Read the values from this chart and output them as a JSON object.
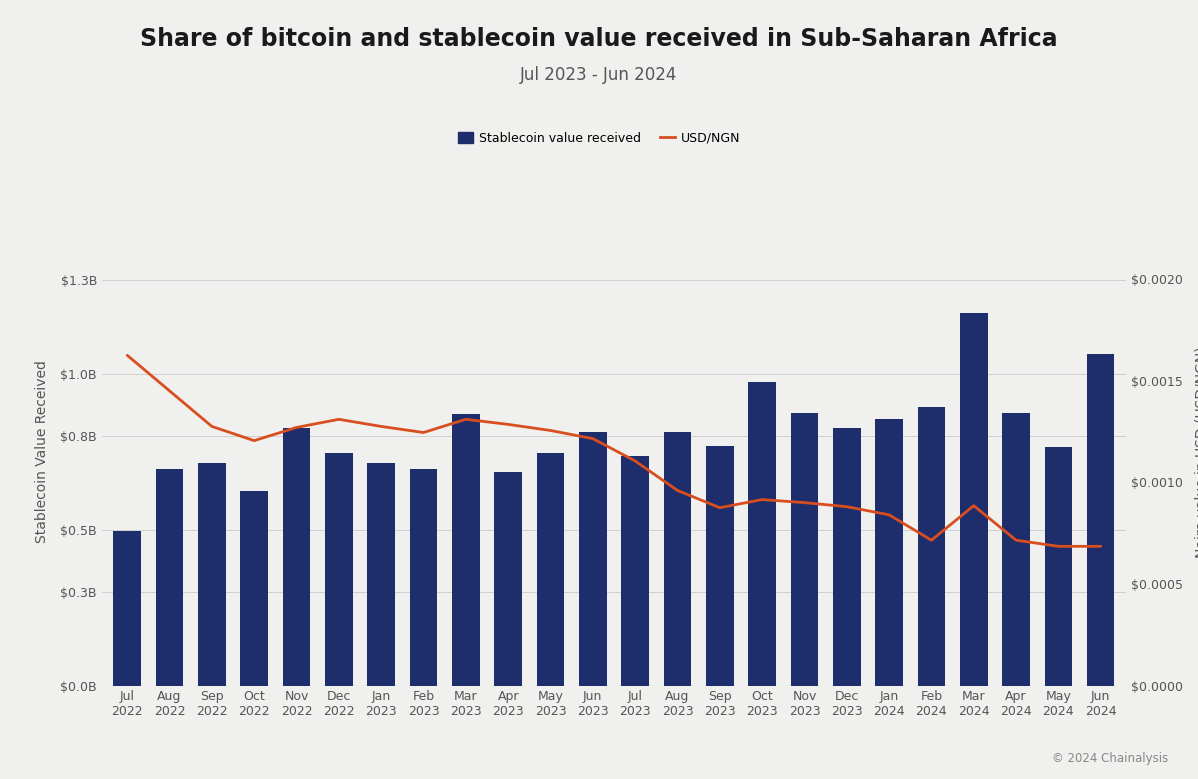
{
  "title": "Share of bitcoin and stablecoin value received in Sub-Saharan Africa",
  "subtitle": "Jul 2023 - Jun 2024",
  "copyright": "© 2024 Chainalysis",
  "background_color": "#f0f0ee",
  "bar_color": "#1e2d6b",
  "line_color": "#d94e1f",
  "categories": [
    "Jul\n2022",
    "Aug\n2022",
    "Sep\n2022",
    "Oct\n2022",
    "Nov\n2022",
    "Dec\n2022",
    "Jan\n2023",
    "Feb\n2023",
    "Mar\n2023",
    "Apr\n2023",
    "May\n2023",
    "Jun\n2023",
    "Jul\n2023",
    "Aug\n2023",
    "Sep\n2023",
    "Oct\n2023",
    "Nov\n2023",
    "Dec\n2023",
    "Jan\n2024",
    "Feb\n2024",
    "Mar\n2024",
    "Apr\n2024",
    "May\n2024",
    "Jun\n2024"
  ],
  "bar_values": [
    0.495,
    0.695,
    0.715,
    0.625,
    0.825,
    0.745,
    0.715,
    0.695,
    0.87,
    0.685,
    0.745,
    0.815,
    0.735,
    0.815,
    0.77,
    0.975,
    0.875,
    0.825,
    0.855,
    0.895,
    1.195,
    0.875,
    0.765,
    1.065
  ],
  "line_values": [
    0.001625,
    0.00145,
    0.001275,
    0.001205,
    0.00127,
    0.00131,
    0.001275,
    0.001245,
    0.00131,
    0.001285,
    0.001255,
    0.001215,
    0.001105,
    0.00096,
    0.000875,
    0.000915,
    0.0009,
    0.00088,
    0.00084,
    0.000715,
    0.000885,
    0.000715,
    0.000685,
    0.000685
  ],
  "left_ylim": [
    0,
    1.5
  ],
  "right_ylim": [
    0,
    0.0023
  ],
  "left_yticks": [
    0.0,
    0.3,
    0.5,
    0.8,
    1.0,
    1.3
  ],
  "left_yticklabels": [
    "$0.0B",
    "$0.3B",
    "$0.5B",
    "$0.8B",
    "$1.0B",
    "$1.3B"
  ],
  "right_yticks": [
    0.0,
    0.0005,
    0.001,
    0.0015,
    0.002
  ],
  "right_yticklabels": [
    "$0.0000",
    "$0.0005",
    "$0.0010",
    "$0.0015",
    "$0.0020"
  ],
  "ylabel_left": "Stablecoin Value Received",
  "ylabel_right": "Naira value in USD (USD/NGN)",
  "legend_bar_label": "Stablecoin value received",
  "legend_line_label": "USD/NGN",
  "grid_color": "#d0d0d0",
  "title_fontsize": 17,
  "subtitle_fontsize": 12,
  "axis_label_fontsize": 10,
  "tick_fontsize": 9
}
